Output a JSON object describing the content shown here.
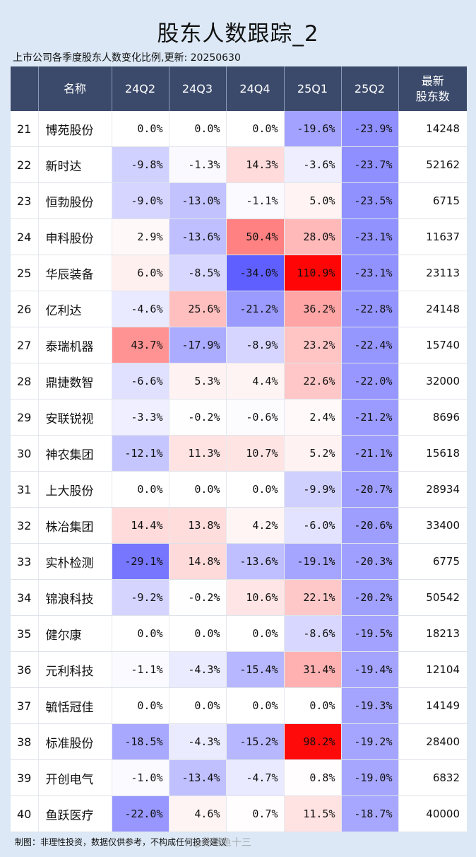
{
  "title": "股东人数跟踪_2",
  "subtitle": "上市公司各季度股东人数变化比例,更新: 20250630",
  "colors": {
    "header_bg": "#3b4a6b",
    "negative": "#5a5af5",
    "positive": "#ff1a1a"
  },
  "headers": [
    "",
    "名称",
    "24Q2",
    "24Q3",
    "24Q4",
    "25Q1",
    "25Q2",
    "最新\n股东数"
  ],
  "rows": [
    {
      "rank": "21",
      "name": "博苑股份",
      "values": [
        "0.0%",
        "0.0%",
        "0.0%",
        "-19.6%",
        "-23.9%"
      ],
      "holders": "14248"
    },
    {
      "rank": "22",
      "name": "新时达",
      "values": [
        "-9.8%",
        "-1.3%",
        "14.3%",
        "-3.6%",
        "-23.7%"
      ],
      "holders": "52162"
    },
    {
      "rank": "23",
      "name": "恒勃股份",
      "values": [
        "-9.0%",
        "-13.0%",
        "-1.1%",
        "5.0%",
        "-23.5%"
      ],
      "holders": "6715"
    },
    {
      "rank": "24",
      "name": "申科股份",
      "values": [
        "2.9%",
        "-13.6%",
        "50.4%",
        "28.0%",
        "-23.1%"
      ],
      "holders": "11637"
    },
    {
      "rank": "25",
      "name": "华辰装备",
      "values": [
        "6.0%",
        "-8.5%",
        "-34.0%",
        "110.9%",
        "-23.1%"
      ],
      "holders": "23113"
    },
    {
      "rank": "26",
      "name": "亿利达",
      "values": [
        "-4.6%",
        "25.6%",
        "-21.2%",
        "36.2%",
        "-22.8%"
      ],
      "holders": "24148"
    },
    {
      "rank": "27",
      "name": "泰瑞机器",
      "values": [
        "43.7%",
        "-17.9%",
        "-8.9%",
        "23.2%",
        "-22.4%"
      ],
      "holders": "15740"
    },
    {
      "rank": "28",
      "name": "鼎捷数智",
      "values": [
        "-6.6%",
        "5.3%",
        "4.4%",
        "22.6%",
        "-22.0%"
      ],
      "holders": "32000"
    },
    {
      "rank": "29",
      "name": "安联锐视",
      "values": [
        "-3.3%",
        "-0.2%",
        "-0.6%",
        "2.4%",
        "-21.2%"
      ],
      "holders": "8696"
    },
    {
      "rank": "30",
      "name": "神农集团",
      "values": [
        "-12.1%",
        "11.3%",
        "10.7%",
        "5.2%",
        "-21.1%"
      ],
      "holders": "15618"
    },
    {
      "rank": "31",
      "name": "上大股份",
      "values": [
        "0.0%",
        "0.0%",
        "0.0%",
        "-9.9%",
        "-20.7%"
      ],
      "holders": "28934"
    },
    {
      "rank": "32",
      "name": "株冶集团",
      "values": [
        "14.4%",
        "13.8%",
        "4.2%",
        "-6.0%",
        "-20.6%"
      ],
      "holders": "33400"
    },
    {
      "rank": "33",
      "name": "实朴检测",
      "values": [
        "-29.1%",
        "14.8%",
        "-13.6%",
        "-19.1%",
        "-20.3%"
      ],
      "holders": "6775"
    },
    {
      "rank": "34",
      "name": "锦浪科技",
      "values": [
        "-9.2%",
        "-0.2%",
        "10.6%",
        "22.1%",
        "-20.2%"
      ],
      "holders": "50542"
    },
    {
      "rank": "35",
      "name": "健尔康",
      "values": [
        "0.0%",
        "0.0%",
        "0.0%",
        "-8.6%",
        "-19.5%"
      ],
      "holders": "18213"
    },
    {
      "rank": "36",
      "name": "元利科技",
      "values": [
        "-1.1%",
        "-4.3%",
        "-15.4%",
        "31.4%",
        "-19.4%"
      ],
      "holders": "12104"
    },
    {
      "rank": "37",
      "name": "毓恬冠佳",
      "values": [
        "0.0%",
        "0.0%",
        "0.0%",
        "0.0%",
        "-19.3%"
      ],
      "holders": "14149"
    },
    {
      "rank": "38",
      "name": "标准股份",
      "values": [
        "-18.5%",
        "-4.3%",
        "-15.2%",
        "98.2%",
        "-19.2%"
      ],
      "holders": "28400"
    },
    {
      "rank": "39",
      "name": "开创电气",
      "values": [
        "-1.0%",
        "-13.4%",
        "-4.7%",
        "0.8%",
        "-19.0%"
      ],
      "holders": "6832"
    },
    {
      "rank": "40",
      "name": "鱼跃医疗",
      "values": [
        "-22.0%",
        "4.6%",
        "0.7%",
        "11.5%",
        "-18.7%"
      ],
      "holders": "40000"
    }
  ],
  "footer": "制图：非理性投资，数据仅供参考，不构成任何投资建议",
  "watermark": "@秘塔鱼十三"
}
